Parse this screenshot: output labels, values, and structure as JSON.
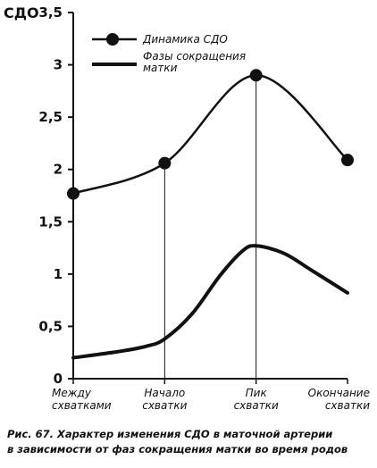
{
  "chart_data": {
    "type": "line",
    "ylabel": "СДО",
    "categories": [
      "Между схватками",
      "Начало схватки",
      "Пик схватки",
      "Окончание схватки"
    ],
    "category_lines": [
      [
        "Между",
        "схватками"
      ],
      [
        "Начало",
        "схватки"
      ],
      [
        "Пик",
        "схватки"
      ],
      [
        "Окончание",
        "схватки"
      ]
    ],
    "ylim": [
      0,
      3.5
    ],
    "yticks": [
      0,
      0.5,
      1,
      1.5,
      2,
      2.5,
      3,
      3.5
    ],
    "ytick_labels": [
      "0",
      "0,5",
      "1",
      "1,5",
      "2",
      "2,5",
      "3",
      "3,5"
    ],
    "grid": false,
    "legend_position": "top-left",
    "series": [
      {
        "name": "Динамика СДО",
        "marker": "circle",
        "values": [
          1.77,
          2.06,
          2.9,
          2.09
        ]
      },
      {
        "name": [
          "Фазы сокращения",
          "матки"
        ],
        "marker": "none",
        "curve_x": [
          0,
          0.5,
          0.8,
          1.0,
          1.3,
          1.6,
          1.85,
          2.0,
          2.3,
          2.6,
          3.0
        ],
        "curve_y": [
          0.2,
          0.26,
          0.31,
          0.38,
          0.62,
          0.98,
          1.22,
          1.27,
          1.2,
          1.04,
          0.82
        ]
      }
    ]
  },
  "caption": {
    "line1": "Рис. 67.  Характер изменения СДО в маточной артерии",
    "line2": "в зависимости от фаз сокращения матки во время родов"
  },
  "colors": {
    "ink": "#111111",
    "background": "#ffffff"
  }
}
